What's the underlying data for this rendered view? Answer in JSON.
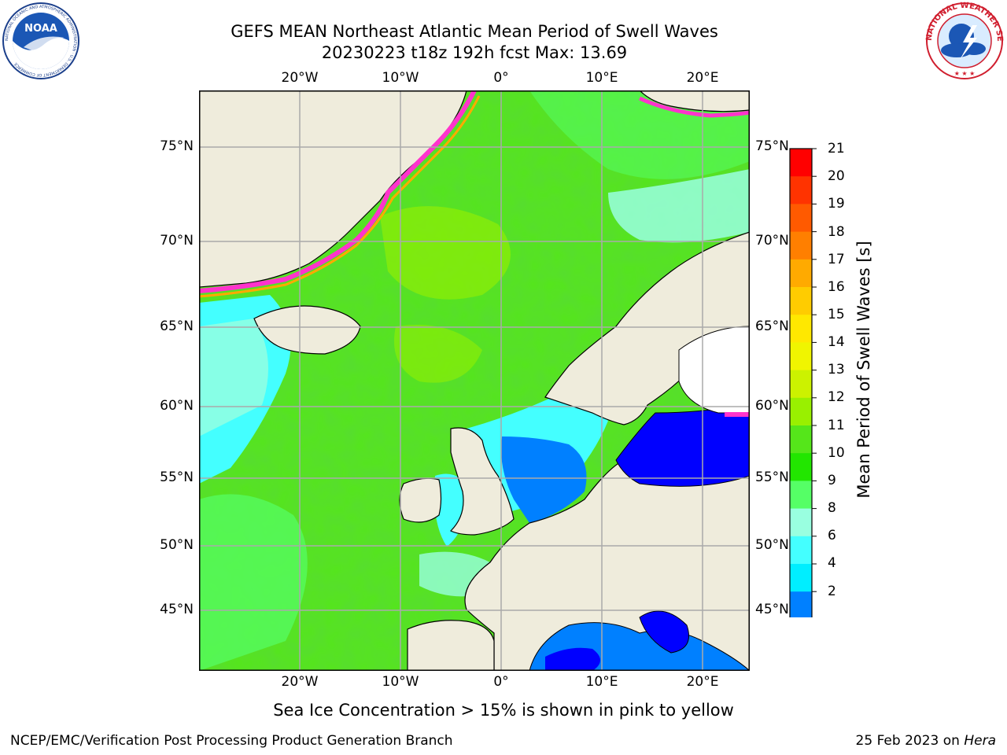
{
  "header": {
    "title_line1": "GEFS MEAN Northeast Atlantic Mean Period of Swell Waves",
    "title_line2": "20230223 t18z 192h fcst   Max: 13.69"
  },
  "logos": {
    "left": {
      "name": "noaa-logo",
      "text": "NOAA",
      "ring_text": "NATIONAL OCEANIC AND ATMOSPHERIC ADMINISTRATION · U.S. DEPARTMENT OF COMMERCE"
    },
    "right": {
      "name": "nws-logo",
      "ring_text": "NATIONAL WEATHER SERVICE"
    }
  },
  "map": {
    "lon_labels": [
      "20°W",
      "10°W",
      "0°",
      "10°E",
      "20°E"
    ],
    "lat_labels": [
      "75°N",
      "70°N",
      "65°N",
      "60°N",
      "55°N",
      "50°N",
      "45°N"
    ],
    "colors": {
      "land": "#efecdc",
      "ice_pink": "#ff33cc",
      "grid": "#aaaaaa"
    }
  },
  "colorbar": {
    "label": "Mean Period of Swell Waves [s]",
    "ticks": [
      "21",
      "20",
      "19",
      "18",
      "17",
      "16",
      "15",
      "14",
      "13",
      "12",
      "11",
      "10",
      "9",
      "8",
      "6",
      "4",
      "2"
    ],
    "colors_top_to_bottom": [
      "#ff0000",
      "#ff3300",
      "#ff5a00",
      "#ff7f00",
      "#ffaa00",
      "#ffcc00",
      "#ffe800",
      "#f0f500",
      "#ccf200",
      "#99f000",
      "#55e61a",
      "#22e600",
      "#55ff66",
      "#99ffe0",
      "#44ffff",
      "#00eeff",
      "#0080ff"
    ],
    "extend_color": "#0000ff"
  },
  "footer": {
    "note": "Sea Ice Concentration > 15% is shown in pink to yellow",
    "left": "NCEP/EMC/Verification Post Processing Product Generation Branch",
    "right_date": "25 Feb 2023 on ",
    "right_host": "Hera"
  }
}
